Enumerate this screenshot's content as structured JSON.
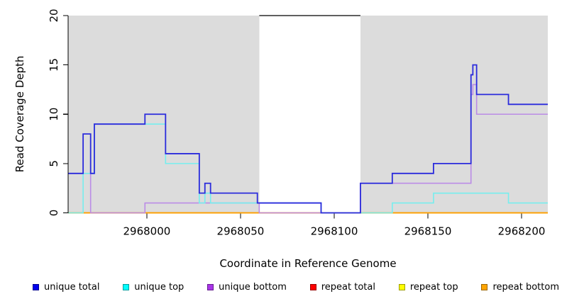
{
  "chart_data": {
    "type": "step-line",
    "title": "",
    "xlabel": "Coordinate in Reference Genome",
    "ylabel": "Read Coverage Depth",
    "xlim": [
      2967958,
      2968214
    ],
    "ylim": [
      0,
      20
    ],
    "x_ticks": [
      "2968000",
      "2968050",
      "2968100",
      "2968150",
      "2968200"
    ],
    "x_tick_values": [
      2968000,
      2968050,
      2968100,
      2968150,
      2968200
    ],
    "y_ticks": [
      "0",
      "5",
      "10",
      "15",
      "20"
    ],
    "y_tick_values": [
      0,
      5,
      10,
      15,
      20
    ],
    "grid": false,
    "legend_position": "bottom",
    "background_color": "#ffffff",
    "shaded_region_color": "#dcdcdc",
    "shaded_regions": [
      {
        "name": "left-shaded-region",
        "x1": 2967958,
        "x2": 2968060
      },
      {
        "name": "right-shaded-region",
        "x1": 2968114,
        "x2": 2968214
      }
    ],
    "masked_gap_top_line": {
      "x1": 2968060,
      "x2": 2968114,
      "y_value": 20,
      "color": "#4a4a4a"
    },
    "series": [
      {
        "name": "repeat total",
        "color": "#dd2222",
        "width": 1.4,
        "steps": [
          [
            2967958,
            0
          ]
        ]
      },
      {
        "name": "repeat top",
        "color": "#f2f200",
        "width": 1.4,
        "steps": [
          [
            2967958,
            0
          ]
        ]
      },
      {
        "name": "repeat bottom",
        "color": "#ff9e00",
        "width": 1.8,
        "steps": [
          [
            2967958,
            0
          ]
        ]
      },
      {
        "name": "unique bottom",
        "color": "#bb8ce6",
        "width": 1.6,
        "steps": [
          [
            2967958,
            4
          ],
          [
            2967970,
            0
          ],
          [
            2967999,
            1
          ],
          [
            2968060,
            0
          ],
          [
            2968114,
            3
          ],
          [
            2968173,
            12
          ],
          [
            2968174,
            13
          ],
          [
            2968176,
            10
          ]
        ]
      },
      {
        "name": "unique top",
        "color": "#76eeee",
        "width": 1.6,
        "steps": [
          [
            2967958,
            0
          ],
          [
            2967966,
            4
          ],
          [
            2967972,
            9
          ],
          [
            2968010,
            5
          ],
          [
            2968028,
            1
          ],
          [
            2968031,
            2
          ],
          [
            2968034,
            1
          ],
          [
            2968093,
            0
          ],
          [
            2968131,
            1
          ],
          [
            2968153,
            2
          ],
          [
            2968193,
            1
          ]
        ]
      },
      {
        "name": "unique total",
        "color": "#2b2bdc",
        "width": 1.8,
        "steps": [
          [
            2967958,
            4
          ],
          [
            2967966,
            8
          ],
          [
            2967970,
            4
          ],
          [
            2967972,
            9
          ],
          [
            2967999,
            10
          ],
          [
            2968010,
            6
          ],
          [
            2968028,
            2
          ],
          [
            2968031,
            3
          ],
          [
            2968034,
            2
          ],
          [
            2968059,
            1
          ],
          [
            2968093,
            0
          ],
          [
            2968114,
            3
          ],
          [
            2968131,
            4
          ],
          [
            2968153,
            5
          ],
          [
            2968173,
            14
          ],
          [
            2968174,
            15
          ],
          [
            2968176,
            12
          ],
          [
            2968193,
            11
          ]
        ]
      }
    ],
    "legend": [
      {
        "label": "unique total",
        "color": "#0000ee",
        "border": "#000090"
      },
      {
        "label": "unique top",
        "color": "#00ffff",
        "border": "#009e9e"
      },
      {
        "label": "unique bottom",
        "color": "#a935e8",
        "border": "#661d91"
      },
      {
        "label": "repeat total",
        "color": "#ff0000",
        "border": "#990000"
      },
      {
        "label": "repeat top",
        "color": "#ffff00",
        "border": "#9e9e00"
      },
      {
        "label": "repeat bottom",
        "color": "#ffa500",
        "border": "#9e6600"
      }
    ]
  }
}
